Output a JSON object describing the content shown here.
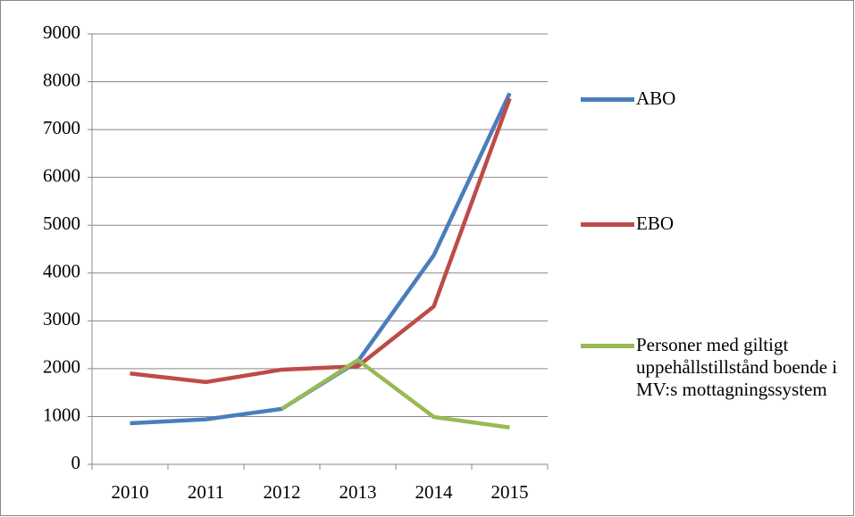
{
  "chart_data": {
    "type": "line",
    "categories": [
      "2010",
      "2011",
      "2012",
      "2013",
      "2014",
      "2015"
    ],
    "series": [
      {
        "name": "ABO",
        "color": "#4a7ebb",
        "values": [
          860,
          940,
          1160,
          2150,
          4370,
          7760
        ]
      },
      {
        "name": "EBO",
        "color": "#be4b48",
        "values": [
          1900,
          1720,
          1980,
          2050,
          3300,
          7650
        ]
      },
      {
        "name": "Personer med giltigt uppehållstillstånd boende i MV:s mottagningssystem",
        "color": "#98b954",
        "values": [
          null,
          null,
          1160,
          2180,
          990,
          770
        ]
      }
    ],
    "ylim": [
      0,
      9000
    ],
    "yticks": [
      0,
      1000,
      2000,
      3000,
      4000,
      5000,
      6000,
      7000,
      8000,
      9000
    ],
    "grid": true,
    "legend": "right"
  }
}
